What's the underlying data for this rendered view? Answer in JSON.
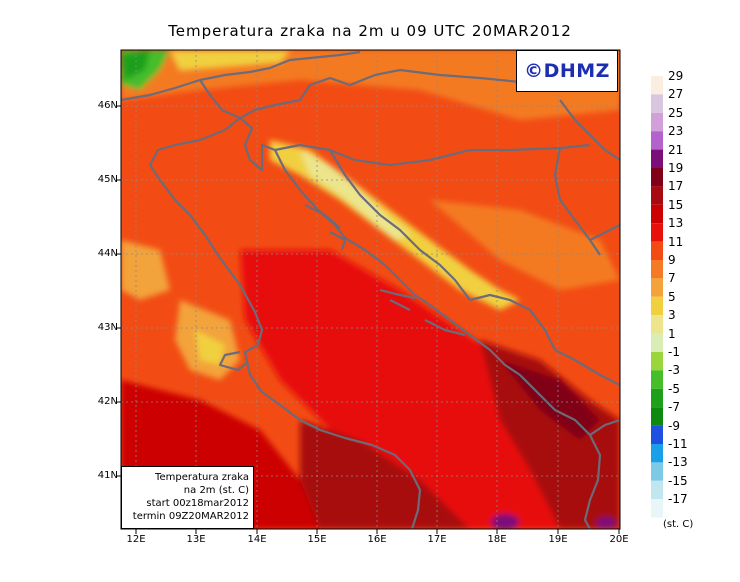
{
  "title": "Temperatura zraka na 2m u 09 UTC 20MAR2012",
  "logo": "©DHMZ",
  "info_box": {
    "line1": "Temperatura zraka",
    "line2": "na 2m (st. C)",
    "line3": "start 00z18mar2012",
    "line4": "termin 09Z20MAR2012"
  },
  "axes": {
    "lat_labels": [
      "46N",
      "45N",
      "44N",
      "43N",
      "42N",
      "41N"
    ],
    "lat_values": [
      46,
      45,
      44,
      43,
      42,
      41
    ],
    "lon_labels": [
      "12E",
      "13E",
      "14E",
      "15E",
      "16E",
      "17E",
      "18E",
      "19E",
      "20E"
    ],
    "lon_values": [
      12,
      13,
      14,
      15,
      16,
      17,
      18,
      19,
      20
    ],
    "lat_range": [
      40.3,
      46.7
    ],
    "lon_range": [
      11.7,
      20.0
    ]
  },
  "legend": {
    "unit": "(st. C)",
    "labels": [
      "29",
      "27",
      "25",
      "23",
      "21",
      "19",
      "17",
      "15",
      "13",
      "11",
      "9",
      "7",
      "5",
      "3",
      "1",
      "-1",
      "-3",
      "-5",
      "-7",
      "-9",
      "-11",
      "-13",
      "-15",
      "-17"
    ],
    "colors": [
      "#fbeee0",
      "#d9c7e0",
      "#d2a0d8",
      "#b462cc",
      "#7a0f7a",
      "#800018",
      "#a80a10",
      "#cc0000",
      "#e8100c",
      "#f24c14",
      "#f47a24",
      "#f3a33a",
      "#f1d040",
      "#ece58c",
      "#d9edb4",
      "#9ad53c",
      "#45be2a",
      "#1fa01a",
      "#0e8a10",
      "#2050e0",
      "#1aa0e6",
      "#7dc9e6",
      "#c2e6ef",
      "#e8f6f8"
    ]
  }
}
